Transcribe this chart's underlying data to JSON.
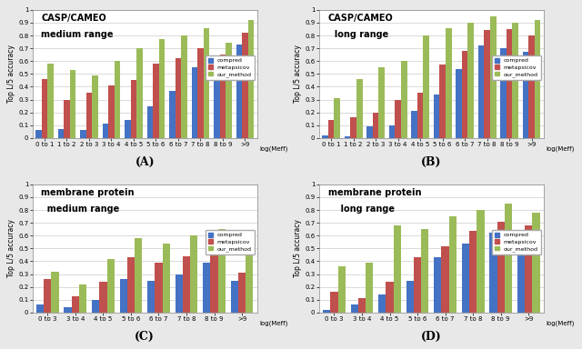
{
  "panel_A": {
    "title1": "CASP/CAMEO",
    "title2": "medium range",
    "categories": [
      "0 to 1",
      "1 to 2",
      "2 to 3",
      "3 to 4",
      "4 to 5",
      "5 to 6",
      "6 to 7",
      "7 to 8",
      "8 to 9",
      ">9"
    ],
    "compred": [
      0.06,
      0.07,
      0.06,
      0.11,
      0.14,
      0.25,
      0.37,
      0.55,
      0.57,
      0.73
    ],
    "metapsicov": [
      0.46,
      0.3,
      0.35,
      0.41,
      0.45,
      0.58,
      0.62,
      0.7,
      0.65,
      0.82
    ],
    "our_method": [
      0.58,
      0.53,
      0.49,
      0.6,
      0.7,
      0.77,
      0.8,
      0.86,
      0.74,
      0.92
    ],
    "label": "(A)"
  },
  "panel_B": {
    "title1": "CASP/CAMEO",
    "title2": "  long range",
    "categories": [
      "0 to 1",
      "1 to 2",
      "2 to 3",
      "3 to 4",
      "4 to 5",
      "5 to 6",
      "6 to 7",
      "7 to 8",
      "8 to 9",
      ">9"
    ],
    "compred": [
      0.02,
      0.01,
      0.09,
      0.1,
      0.21,
      0.34,
      0.54,
      0.72,
      0.7,
      0.67
    ],
    "metapsicov": [
      0.14,
      0.16,
      0.2,
      0.3,
      0.35,
      0.57,
      0.68,
      0.84,
      0.85,
      0.8
    ],
    "our_method": [
      0.31,
      0.46,
      0.55,
      0.6,
      0.8,
      0.86,
      0.9,
      0.95,
      0.9,
      0.92
    ],
    "label": "(B)"
  },
  "panel_C": {
    "title1": "membrane protein",
    "title2": "  medium range",
    "categories": [
      "0 to 3",
      "3 to 4",
      "4 to 5",
      "5 to 6",
      "6 to 7",
      "7 to 8",
      "8 to 9",
      ">9"
    ],
    "compred": [
      0.06,
      0.04,
      0.1,
      0.26,
      0.25,
      0.3,
      0.39,
      0.25
    ],
    "metapsicov": [
      0.26,
      0.13,
      0.24,
      0.43,
      0.39,
      0.44,
      0.52,
      0.31
    ],
    "our_method": [
      0.32,
      0.22,
      0.42,
      0.58,
      0.54,
      0.6,
      0.65,
      0.45
    ],
    "label": "(C)"
  },
  "panel_D": {
    "title1": "membrane protein",
    "title2": "    long range",
    "categories": [
      "0 to 3",
      "3 to 4",
      "4 to 5",
      "5 to 6",
      "6 to 7",
      "7 to 8",
      "8 to 9",
      ">9"
    ],
    "compred": [
      0.02,
      0.06,
      0.14,
      0.25,
      0.43,
      0.54,
      0.62,
      0.62
    ],
    "metapsicov": [
      0.16,
      0.11,
      0.24,
      0.43,
      0.52,
      0.64,
      0.71,
      0.68
    ],
    "our_method": [
      0.36,
      0.39,
      0.68,
      0.65,
      0.75,
      0.8,
      0.85,
      0.78
    ],
    "label": "(D)"
  },
  "colors": {
    "compred": "#4472C4",
    "metapsicov": "#C0504D",
    "our_method": "#9BBB59"
  },
  "ylabel": "Top L/5 accuracy",
  "xlabel_tag": "log(Meff)",
  "yticks": [
    0,
    0.1,
    0.2,
    0.3,
    0.4,
    0.5,
    0.6,
    0.7,
    0.8,
    0.9,
    1
  ],
  "bg_color": "#FFFFFF",
  "fig_bg": "#E8E8E8",
  "grid_color": "#CCCCCC"
}
